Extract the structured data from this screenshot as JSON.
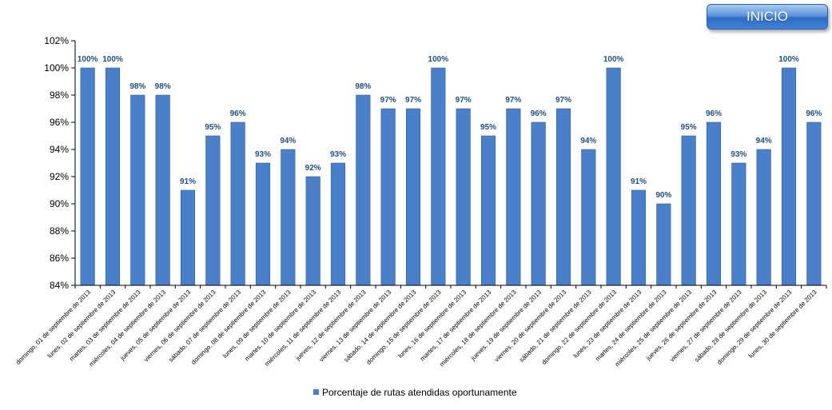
{
  "nav": {
    "inicio_label": "INICIO"
  },
  "colors": {
    "bar": "#4a7fc9",
    "bar_stroke": "#2f5f9e",
    "data_label": "#1f4e8a",
    "axis": "#000000"
  },
  "chart_data": {
    "type": "bar",
    "title": "",
    "xlabel": "",
    "ylabel": "",
    "ylim": [
      84,
      102
    ],
    "yticks": [
      84,
      86,
      88,
      90,
      92,
      94,
      96,
      98,
      100,
      102
    ],
    "ytick_labels": [
      "84%",
      "86%",
      "88%",
      "90%",
      "92%",
      "94%",
      "96%",
      "98%",
      "100%",
      "102%"
    ],
    "grid": false,
    "legend_position": "bottom",
    "categories": [
      "domingo, 01 de septiembre de 2013",
      "lunes, 02 de septiembre de 2013",
      "martes, 03 de septiembre de 2013",
      "miércoles, 04 de septiembre de 2013",
      "jueves, 05 de septiembre de 2013",
      "viernes, 06 de septiembre de 2013",
      "sábado, 07 de septiembre de 2013",
      "domingo, 08 de septiembre de 2013",
      "lunes, 09 de septiembre de 2013",
      "martes, 10 de septiembre de 2013",
      "miércoles, 11 de septiembre de 2013",
      "jueves, 12 de septiembre de 2013",
      "viernes, 13 de septiembre de 2013",
      "sábado, 14 de septiembre de 2013",
      "domingo, 15 de septiembre de 2013",
      "lunes, 16 de septiembre de 2013",
      "martes, 17 de septiembre de 2013",
      "miércoles, 18 de septiembre de 2013",
      "jueves, 19 de septiembre de 2013",
      "viernes, 20 de septiembre de 2013",
      "sábado, 21 de septiembre de 2013",
      "domingo, 22 de septiembre de 2013",
      "lunes, 23 de septiembre de 2013",
      "martes, 24 de septiembre de 2013",
      "miércoles, 25 de septiembre de 2013",
      "jueves, 26 de septiembre de 2013",
      "viernes, 27 de septiembre de 2013",
      "sábado, 28 de septiembre de 2013",
      "domingo, 29 de septiembre de 2013",
      "lunes, 30 de septiembre de 2013"
    ],
    "series": [
      {
        "name": "Porcentaje de rutas atendidas oportunamente",
        "values": [
          100,
          100,
          98,
          98,
          91,
          95,
          96,
          93,
          94,
          92,
          93,
          98,
          97,
          97,
          100,
          97,
          95,
          97,
          96,
          97,
          94,
          100,
          91,
          90,
          95,
          96,
          93,
          94,
          100,
          96
        ],
        "data_labels": [
          "100%",
          "100%",
          "98%",
          "98%",
          "91%",
          "95%",
          "96%",
          "93%",
          "94%",
          "92%",
          "93%",
          "98%",
          "97%",
          "97%",
          "100%",
          "97%",
          "95%",
          "97%",
          "96%",
          "97%",
          "94%",
          "100%",
          "91%",
          "90%",
          "95%",
          "96%",
          "93%",
          "94%",
          "100%",
          "96%"
        ]
      }
    ]
  }
}
